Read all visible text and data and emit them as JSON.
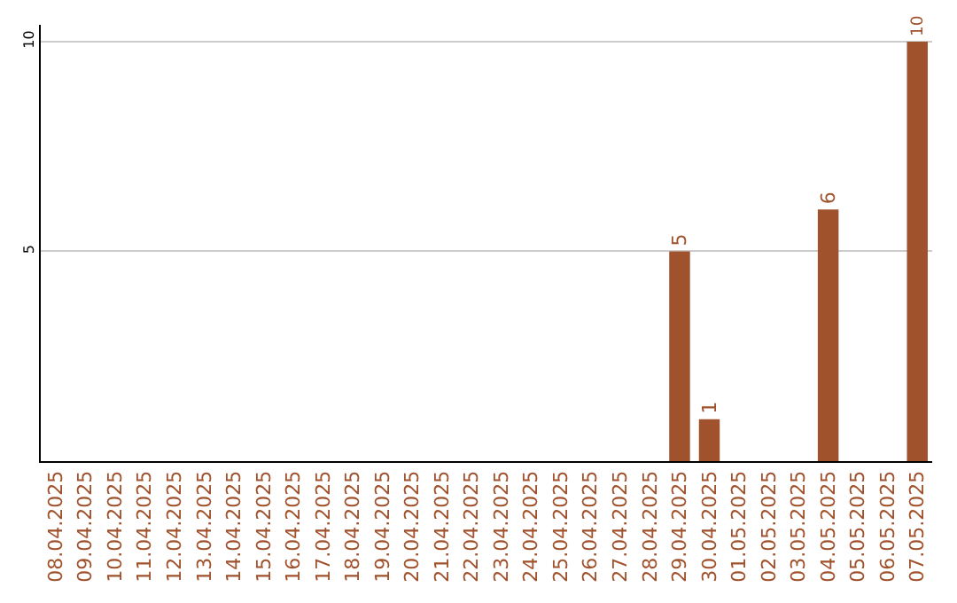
{
  "chart_data": {
    "type": "bar",
    "categories": [
      "08.04.2025",
      "09.04.2025",
      "10.04.2025",
      "11.04.2025",
      "12.04.2025",
      "13.04.2025",
      "14.04.2025",
      "15.04.2025",
      "16.04.2025",
      "17.04.2025",
      "18.04.2025",
      "19.04.2025",
      "20.04.2025",
      "21.04.2025",
      "22.04.2025",
      "23.04.2025",
      "24.04.2025",
      "25.04.2025",
      "26.04.2025",
      "27.04.2025",
      "28.04.2025",
      "29.04.2025",
      "30.04.2025",
      "01.05.2025",
      "02.05.2025",
      "03.05.2025",
      "04.05.2025",
      "05.05.2025",
      "06.05.2025",
      "07.05.2025"
    ],
    "values": [
      0,
      0,
      0,
      0,
      0,
      0,
      0,
      0,
      0,
      0,
      0,
      0,
      0,
      0,
      0,
      0,
      0,
      0,
      0,
      0,
      0,
      5,
      1,
      0,
      0,
      0,
      6,
      0,
      0,
      10
    ],
    "value_labels": [
      null,
      null,
      null,
      null,
      null,
      null,
      null,
      null,
      null,
      null,
      null,
      null,
      null,
      null,
      null,
      null,
      null,
      null,
      null,
      null,
      null,
      "5",
      "1",
      null,
      null,
      null,
      "6",
      null,
      null,
      "10"
    ],
    "color": "#a0522d",
    "ylim": [
      0,
      10
    ],
    "yticks": [
      5,
      10
    ],
    "grid": "y",
    "legend": false
  }
}
